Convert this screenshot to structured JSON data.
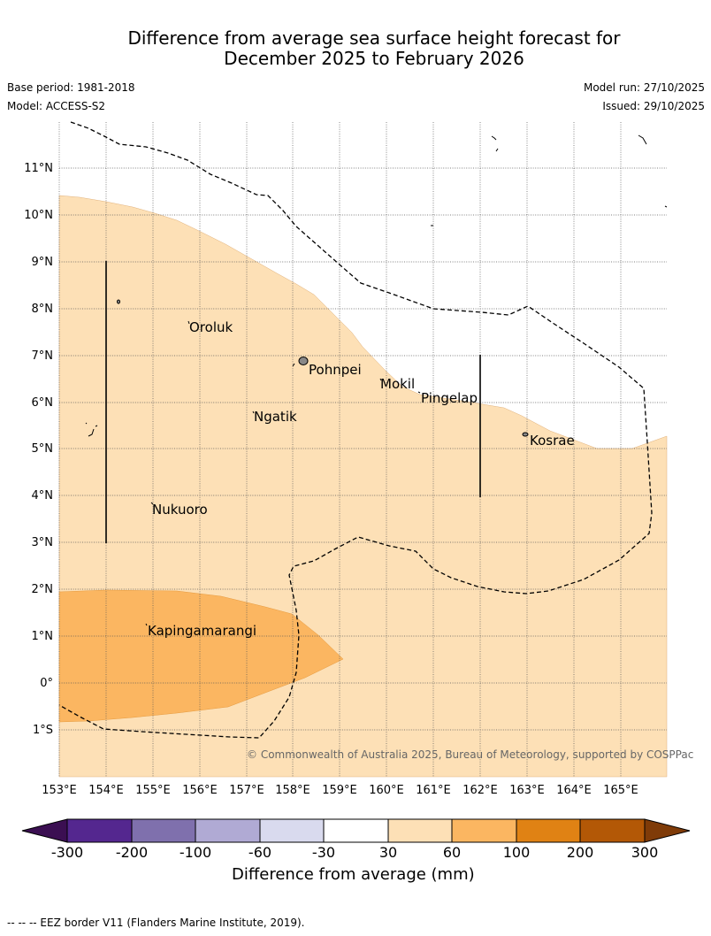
{
  "title_line1": "Difference from average sea surface height forecast for",
  "title_line2": "December 2025 to February 2026",
  "base_period": "Base period: 1981-2018",
  "model": "Model: ACCESS-S2",
  "model_run": "Model run: 27/10/2025",
  "issued": "Issued: 29/10/2025",
  "latitude_labels": [
    "11°N",
    "10°N",
    "9°N",
    "8°N",
    "7°N",
    "6°N",
    "5°N",
    "4°N",
    "3°N",
    "2°N",
    "1°N",
    "0°",
    "1°S"
  ],
  "longitude_labels": [
    "153°E",
    "154°E",
    "155°E",
    "156°E",
    "157°E",
    "158°E",
    "159°E",
    "160°E",
    "161°E",
    "162°E",
    "163°E",
    "164°E",
    "165°E"
  ],
  "places": {
    "oroluk": "Oroluk",
    "pohnpei": "Pohnpei",
    "mokil": "Mokil",
    "pingelap": "Pingelap",
    "ngatik": "Ngatik",
    "kosrae": "Kosrae",
    "nukuoro": "Nukuoro",
    "kapingamarangi": "Kapingamarangi"
  },
  "copyright": "© Commonwealth of Australia 2025, Bureau of Meteorology, supported by COSPPac",
  "colorbar": {
    "title": "Difference from average (mm)",
    "ticks": [
      "-300",
      "-200",
      "-100",
      "-60",
      "-30",
      "30",
      "60",
      "100",
      "200",
      "300"
    ],
    "colors": [
      "#3b0f52",
      "#54278f",
      "#7f70ad",
      "#b0aad4",
      "#d9daee",
      "#ffffff",
      "#fde0b6",
      "#fbb661",
      "#e08214",
      "#b35806",
      "#7f3b08"
    ]
  },
  "footer": "--  --  -- EEZ border V11 (Flanders Marine Institute, 2019)."
}
